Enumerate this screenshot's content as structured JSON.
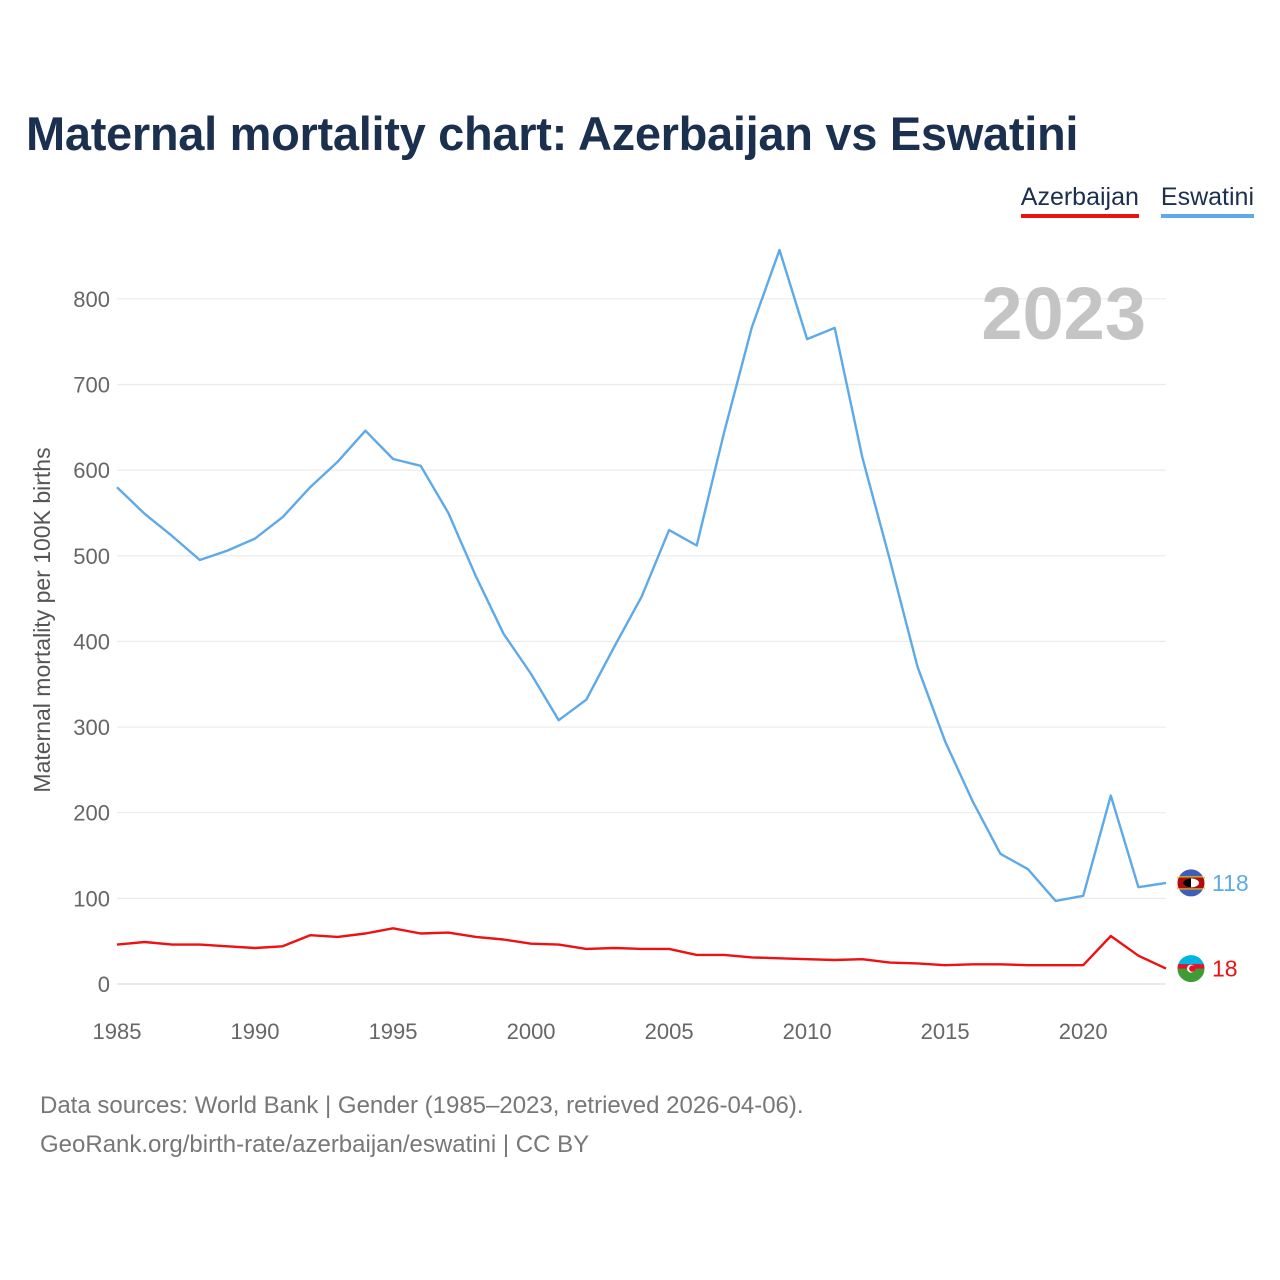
{
  "title": "Maternal mortality chart: Azerbaijan vs Eswatini",
  "legend": [
    {
      "label": "Azerbaijan",
      "color": "#ee1111"
    },
    {
      "label": "Eswatini",
      "color": "#5ea9e8"
    }
  ],
  "year_display": "2023",
  "footer": {
    "line1": "Data sources: World Bank | Gender (1985–2023, retrieved 2026-04-06).",
    "line2": "GeoRank.org/birth-rate/azerbaijan/eswatini | CC BY"
  },
  "chart_data": {
    "type": "line",
    "title": "Maternal mortality chart: Azerbaijan vs Eswatini",
    "xlabel": "",
    "ylabel": "Maternal mortality per 100K births",
    "xlim": [
      1985,
      2023
    ],
    "ylim": [
      0,
      850
    ],
    "yticks": [
      0,
      100,
      200,
      300,
      400,
      500,
      600,
      700,
      800
    ],
    "xticks": [
      1985,
      1990,
      1995,
      2000,
      2005,
      2010,
      2015,
      2020
    ],
    "grid": true,
    "x": [
      1985,
      1986,
      1987,
      1988,
      1989,
      1990,
      1991,
      1992,
      1993,
      1994,
      1995,
      1996,
      1997,
      1998,
      1999,
      2000,
      2001,
      2002,
      2003,
      2004,
      2005,
      2006,
      2007,
      2008,
      2009,
      2010,
      2011,
      2012,
      2013,
      2014,
      2015,
      2016,
      2017,
      2018,
      2019,
      2020,
      2021,
      2022,
      2023
    ],
    "series": [
      {
        "name": "Azerbaijan",
        "color": "#ee1111",
        "end_label": "18",
        "values": [
          46,
          49,
          46,
          46,
          44,
          42,
          44,
          57,
          55,
          59,
          65,
          59,
          60,
          55,
          52,
          47,
          46,
          41,
          42,
          41,
          41,
          34,
          34,
          31,
          30,
          29,
          28,
          29,
          25,
          24,
          22,
          23,
          23,
          22,
          22,
          22,
          56,
          33,
          18
        ]
      },
      {
        "name": "Eswatini",
        "color": "#5ea9e8",
        "end_label": "118",
        "values": [
          580,
          549,
          523,
          495,
          506,
          520,
          545,
          580,
          610,
          646,
          613,
          605,
          550,
          476,
          409,
          362,
          308,
          332,
          393,
          452,
          530,
          512,
          645,
          767,
          857,
          753,
          766,
          615,
          495,
          370,
          283,
          213,
          152,
          134,
          97,
          103,
          220,
          113,
          118
        ]
      }
    ]
  }
}
